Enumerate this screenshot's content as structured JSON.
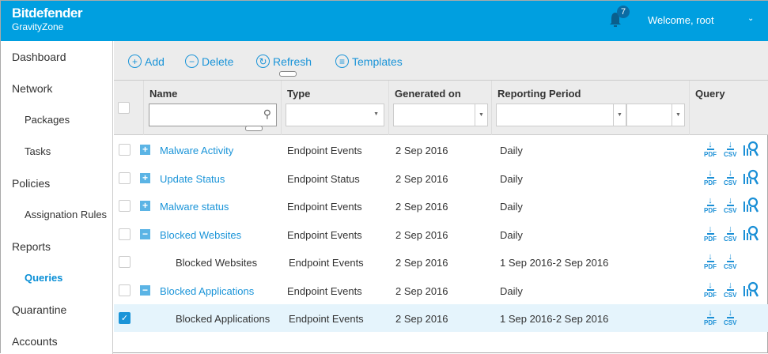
{
  "header": {
    "brand": "Bitdefender",
    "product": "GravityZone",
    "notifications": "7",
    "welcome": "Welcome, root",
    "accent": "#009fe0"
  },
  "sidebar": {
    "items": [
      {
        "label": "Dashboard",
        "sub": false
      },
      {
        "label": "Network",
        "sub": false
      },
      {
        "label": "Packages",
        "sub": true
      },
      {
        "label": "Tasks",
        "sub": true
      },
      {
        "label": "Policies",
        "sub": false
      },
      {
        "label": "Assignation Rules",
        "sub": true
      },
      {
        "label": "Reports",
        "sub": false
      },
      {
        "label": "Queries",
        "sub": true,
        "active": true
      },
      {
        "label": "Quarantine",
        "sub": false
      },
      {
        "label": "Accounts",
        "sub": false
      }
    ]
  },
  "toolbar": {
    "add": "Add",
    "delete": "Delete",
    "refresh": "Refresh",
    "templates": "Templates"
  },
  "table": {
    "columns": [
      "Name",
      "Type",
      "Generated on",
      "Reporting Period",
      "Query"
    ],
    "rows": [
      {
        "name": "Malware Activity",
        "type": "Endpoint Events",
        "generated": "2 Sep 2016",
        "period": "Daily",
        "level": 0,
        "expander": "+",
        "checked": false,
        "view": true
      },
      {
        "name": "Update Status",
        "type": "Endpoint Status",
        "generated": "2 Sep 2016",
        "period": "Daily",
        "level": 0,
        "expander": "+",
        "checked": false,
        "view": true
      },
      {
        "name": "Malware status",
        "type": "Endpoint Events",
        "generated": "2 Sep 2016",
        "period": "Daily",
        "level": 0,
        "expander": "+",
        "checked": false,
        "view": true
      },
      {
        "name": "Blocked Websites",
        "type": "Endpoint Events",
        "generated": "2 Sep 2016",
        "period": "Daily",
        "level": 0,
        "expander": "−",
        "checked": false,
        "view": true
      },
      {
        "name": "Blocked Websites",
        "type": "Endpoint Events",
        "generated": "2 Sep 2016",
        "period": "1 Sep 2016-2 Sep 2016",
        "level": 1,
        "checked": false,
        "view": false
      },
      {
        "name": "Blocked Applications",
        "type": "Endpoint Events",
        "generated": "2 Sep 2016",
        "period": "Daily",
        "level": 0,
        "expander": "−",
        "checked": false,
        "view": true
      },
      {
        "name": "Blocked Applications",
        "type": "Endpoint Events",
        "generated": "2 Sep 2016",
        "period": "1 Sep 2016-2 Sep 2016",
        "level": 1,
        "checked": true,
        "view": false
      }
    ],
    "pdf": "PDF",
    "csv": "CSV"
  }
}
